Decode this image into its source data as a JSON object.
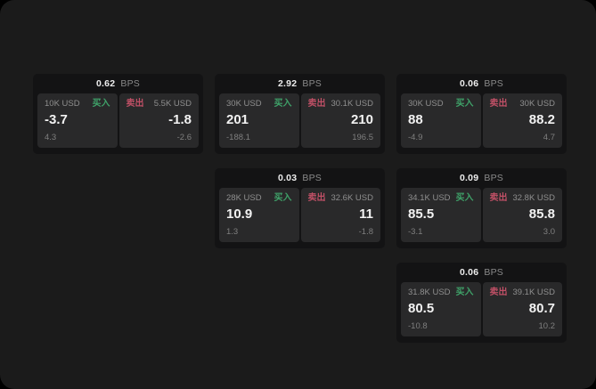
{
  "labels": {
    "bps_unit": "BPS",
    "buy": "买入",
    "sell": "卖出"
  },
  "colors": {
    "page_bg": "#1b1b1b",
    "card_bg": "#131314",
    "panel_bg": "#29292a",
    "buy_green": "#3fa269",
    "sell_red": "#c05066",
    "text_primary": "#f2f2f2",
    "text_secondary": "#8f8f8f"
  },
  "cards": [
    {
      "bps": "0.62",
      "buy": {
        "amount": "10K USD",
        "price": "-3.7",
        "sub": "4.3"
      },
      "sell": {
        "amount": "5.5K USD",
        "price": "-1.8",
        "sub": "-2.6"
      }
    },
    {
      "bps": "2.92",
      "buy": {
        "amount": "30K USD",
        "price": "201",
        "sub": "-188.1"
      },
      "sell": {
        "amount": "30.1K USD",
        "price": "210",
        "sub": "196.5"
      }
    },
    {
      "bps": "0.06",
      "buy": {
        "amount": "30K USD",
        "price": "88",
        "sub": "-4.9"
      },
      "sell": {
        "amount": "30K USD",
        "price": "88.2",
        "sub": "4.7"
      }
    },
    {
      "bps": "0.03",
      "buy": {
        "amount": "28K USD",
        "price": "10.9",
        "sub": "1.3"
      },
      "sell": {
        "amount": "32.6K USD",
        "price": "11",
        "sub": "-1.8"
      }
    },
    {
      "bps": "0.09",
      "buy": {
        "amount": "34.1K USD",
        "price": "85.5",
        "sub": "-3.1"
      },
      "sell": {
        "amount": "32.8K USD",
        "price": "85.8",
        "sub": "3.0"
      }
    },
    {
      "bps": "0.06",
      "buy": {
        "amount": "31.8K USD",
        "price": "80.5",
        "sub": "-10.8"
      },
      "sell": {
        "amount": "39.1K USD",
        "price": "80.7",
        "sub": "10.2"
      }
    }
  ]
}
